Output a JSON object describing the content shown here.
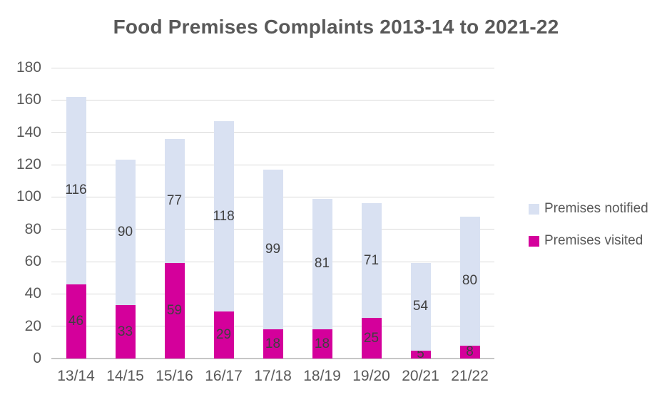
{
  "title": "Food Premises Complaints 2013-14 to 2021-22",
  "colors": {
    "notified": "#d9e1f2",
    "visited": "#d4009b",
    "grid": "#d9d9d9",
    "axis_line": "#c6c6c6",
    "title_text": "#595959",
    "axis_text": "#595959",
    "data_label_text": "#404040"
  },
  "legend": {
    "position": "right",
    "items": [
      {
        "label": "Premises notified",
        "color_key": "notified"
      },
      {
        "label": "Premises visited",
        "color_key": "visited"
      }
    ]
  },
  "chart_data": {
    "type": "bar",
    "stacked": true,
    "title": "Food Premises Complaints 2013-14 to 2021-22",
    "categories": [
      "13/14",
      "14/15",
      "15/16",
      "16/17",
      "17/18",
      "18/19",
      "19/20",
      "20/21",
      "21/22"
    ],
    "series": [
      {
        "name": "Premises visited",
        "color_key": "visited",
        "values": [
          46,
          33,
          59,
          29,
          18,
          18,
          25,
          5,
          8
        ]
      },
      {
        "name": "Premises notified",
        "color_key": "notified",
        "values": [
          116,
          90,
          77,
          118,
          99,
          81,
          71,
          54,
          80
        ]
      }
    ],
    "totals": [
      162,
      123,
      136,
      147,
      117,
      99,
      96,
      59,
      88
    ],
    "xlabel": "",
    "ylabel": "",
    "ylim": [
      0,
      180
    ],
    "ytick_step": 20,
    "yticks": [
      0,
      20,
      40,
      60,
      80,
      100,
      120,
      140,
      160,
      180
    ],
    "grid": true,
    "data_labels": true,
    "legend_position": "right"
  }
}
